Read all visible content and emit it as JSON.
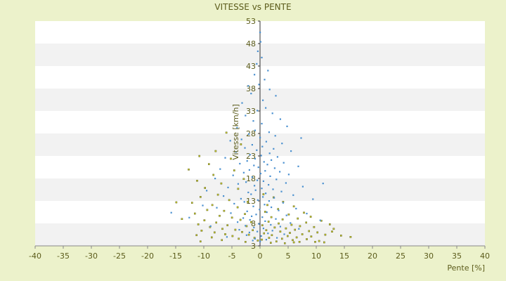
{
  "chart_data": {
    "type": "scatter",
    "title": "VITESSE vs PENTE",
    "xlabel": "Pente [%]",
    "ylabel": "Vitesse [km/h]",
    "xlim": [
      -40,
      40
    ],
    "ylim": [
      3,
      53
    ],
    "x_ticks": [
      -40,
      -35,
      -30,
      -25,
      -20,
      -15,
      -10,
      -5,
      0,
      5,
      10,
      15,
      20,
      25,
      30,
      35,
      40
    ],
    "y_tick_labels": [
      "53",
      "48",
      "43",
      "38",
      "33",
      "28",
      "23",
      "18",
      "13",
      "8",
      "3"
    ],
    "y_ticks": [
      53,
      48,
      43,
      38,
      33,
      28,
      23,
      18,
      13,
      8,
      3
    ],
    "grid": "alternating horizontal bands",
    "legend": "none",
    "colors": {
      "background": "#ECF2CB",
      "band_light": "#FFFFFF",
      "band_dark": "#F2F2F2",
      "text": "#5B5B1A",
      "series_blue": "#4A90D0",
      "series_olive": "#C8CC2C"
    },
    "series": [
      {
        "color": "#4A90D0",
        "points": [
          [
            0.0,
            50.5
          ],
          [
            0.1,
            48.4
          ],
          [
            -0.4,
            46.3
          ],
          [
            0.3,
            44.9
          ],
          [
            -0.6,
            43.5
          ],
          [
            1.4,
            42.0
          ],
          [
            -1.0,
            41.1
          ],
          [
            0.8,
            40.0
          ],
          [
            -2.1,
            38.6
          ],
          [
            -0.2,
            38.9
          ],
          [
            1.7,
            37.8
          ],
          [
            2.8,
            36.4
          ],
          [
            -1.6,
            36.9
          ],
          [
            0.5,
            35.4
          ],
          [
            -3.2,
            34.8
          ],
          [
            1.0,
            33.7
          ],
          [
            -0.5,
            33.1
          ],
          [
            2.2,
            32.5
          ],
          [
            -2.6,
            32.0
          ],
          [
            3.6,
            31.2
          ],
          [
            -1.2,
            30.8
          ],
          [
            0.3,
            30.2
          ],
          [
            4.8,
            29.6
          ],
          [
            -4.1,
            29.3
          ],
          [
            -0.9,
            28.7
          ],
          [
            1.6,
            28.3
          ],
          [
            -2.0,
            27.9
          ],
          [
            2.7,
            27.5
          ],
          [
            0.0,
            27.1
          ],
          [
            -3.3,
            26.7
          ],
          [
            7.3,
            27.0
          ],
          [
            -5.3,
            26.4
          ],
          [
            1.1,
            26.2
          ],
          [
            3.9,
            25.8
          ],
          [
            -1.4,
            25.5
          ],
          [
            0.4,
            25.1
          ],
          [
            -2.7,
            24.8
          ],
          [
            2.4,
            24.6
          ],
          [
            -0.6,
            24.3
          ],
          [
            5.5,
            24.1
          ],
          [
            -4.3,
            23.9
          ],
          [
            1.7,
            23.6
          ],
          [
            -1.8,
            23.3
          ],
          [
            0.2,
            23.1
          ],
          [
            3.1,
            22.8
          ],
          [
            -6.2,
            22.6
          ],
          [
            -0.9,
            22.4
          ],
          [
            2.0,
            22.1
          ],
          [
            -2.3,
            21.9
          ],
          [
            0.7,
            21.7
          ],
          [
            4.2,
            21.5
          ],
          [
            -3.6,
            21.3
          ],
          [
            1.3,
            21.1
          ],
          [
            -1.1,
            20.9
          ],
          [
            6.8,
            20.7
          ],
          [
            -0.3,
            20.5
          ],
          [
            2.6,
            20.3
          ],
          [
            -7.1,
            20.1
          ],
          [
            -1.9,
            19.9
          ],
          [
            0.9,
            19.7
          ],
          [
            3.5,
            19.5
          ],
          [
            -2.9,
            19.3
          ],
          [
            0.1,
            19.1
          ],
          [
            5.1,
            18.9
          ],
          [
            -4.8,
            18.7
          ],
          [
            1.8,
            18.5
          ],
          [
            -1.4,
            18.3
          ],
          [
            -8.0,
            18.0
          ],
          [
            2.9,
            17.8
          ],
          [
            -0.5,
            17.6
          ],
          [
            0.6,
            17.4
          ],
          [
            -2.5,
            17.2
          ],
          [
            4.6,
            17.0
          ],
          [
            -3.9,
            16.8
          ],
          [
            1.5,
            16.6
          ],
          [
            -1.0,
            16.4
          ],
          [
            11.2,
            16.9
          ],
          [
            7.6,
            16.2
          ],
          [
            -5.7,
            16.0
          ],
          [
            0.3,
            15.8
          ],
          [
            2.3,
            15.6
          ],
          [
            -0.8,
            15.4
          ],
          [
            -9.5,
            15.3
          ],
          [
            3.8,
            15.1
          ],
          [
            -2.1,
            14.9
          ],
          [
            1.0,
            14.7
          ],
          [
            -1.6,
            14.5
          ],
          [
            5.9,
            14.3
          ],
          [
            -6.5,
            14.1
          ],
          [
            0.5,
            13.9
          ],
          [
            2.5,
            13.7
          ],
          [
            -3.4,
            13.5
          ],
          [
            9.4,
            13.4
          ],
          [
            -0.4,
            13.2
          ],
          [
            1.6,
            13.0
          ],
          [
            -2.8,
            12.8
          ],
          [
            4.1,
            12.6
          ],
          [
            -4.6,
            12.4
          ],
          [
            0.8,
            12.2
          ],
          [
            -10.2,
            12.0
          ],
          [
            -1.2,
            11.8
          ],
          [
            2.0,
            11.6
          ],
          [
            -7.7,
            11.5
          ],
          [
            6.4,
            11.3
          ],
          [
            -0.1,
            11.1
          ],
          [
            3.3,
            10.9
          ],
          [
            -2.3,
            10.7
          ],
          [
            1.2,
            10.5
          ],
          [
            -5.2,
            10.3
          ],
          [
            -15.8,
            10.4
          ],
          [
            8.3,
            10.2
          ],
          [
            -0.7,
            10.0
          ],
          [
            4.7,
            9.8
          ],
          [
            -1.5,
            9.6
          ],
          [
            0.4,
            9.4
          ],
          [
            -3.0,
            9.2
          ],
          [
            2.8,
            9.0
          ],
          [
            -12.6,
            9.3
          ],
          [
            -1.8,
            8.8
          ],
          [
            10.7,
            8.7
          ],
          [
            0.9,
            8.5
          ],
          [
            -4.0,
            8.3
          ],
          [
            5.4,
            8.1
          ],
          [
            -0.2,
            7.9
          ],
          [
            1.9,
            7.7
          ],
          [
            -2.6,
            7.5
          ],
          [
            -8.8,
            7.4
          ],
          [
            3.6,
            7.3
          ],
          [
            -1.1,
            7.1
          ],
          [
            0.6,
            6.9
          ],
          [
            6.9,
            6.8
          ],
          [
            -3.7,
            6.6
          ],
          [
            2.2,
            6.4
          ],
          [
            -0.5,
            6.2
          ],
          [
            -1.9,
            6.0
          ],
          [
            1.4,
            5.8
          ],
          [
            4.3,
            5.6
          ],
          [
            -2.4,
            5.4
          ],
          [
            0.2,
            5.2
          ],
          [
            -5.9,
            5.0
          ],
          [
            3.0,
            4.8
          ],
          [
            -0.9,
            4.6
          ],
          [
            1.1,
            4.4
          ],
          [
            -1.3,
            4.2
          ],
          [
            0.0,
            4.0
          ]
        ]
      },
      {
        "color": "#C8CC2C",
        "points": [
          [
            -6.0,
            28.2
          ],
          [
            -3.4,
            25.6
          ],
          [
            -7.9,
            24.1
          ],
          [
            -10.8,
            23.0
          ],
          [
            -5.2,
            22.4
          ],
          [
            -9.1,
            21.2
          ],
          [
            -12.7,
            20.0
          ],
          [
            -4.6,
            19.8
          ],
          [
            -8.3,
            18.8
          ],
          [
            -11.2,
            17.5
          ],
          [
            -2.9,
            17.9
          ],
          [
            -6.9,
            16.9
          ],
          [
            -9.8,
            15.9
          ],
          [
            -3.9,
            15.7
          ],
          [
            -14.9,
            12.7
          ],
          [
            -7.5,
            14.4
          ],
          [
            -10.6,
            13.9
          ],
          [
            -5.5,
            13.2
          ],
          [
            -12.1,
            12.6
          ],
          [
            -2.2,
            12.8
          ],
          [
            -8.5,
            12.1
          ],
          [
            -4.0,
            11.6
          ],
          [
            -9.4,
            11.0
          ],
          [
            -6.4,
            10.8
          ],
          [
            -11.6,
            10.2
          ],
          [
            -2.7,
            10.1
          ],
          [
            -7.2,
            9.7
          ],
          [
            -13.9,
            9.0
          ],
          [
            -5.0,
            9.3
          ],
          [
            -9.9,
            8.7
          ],
          [
            -3.5,
            8.8
          ],
          [
            -7.8,
            8.2
          ],
          [
            -1.6,
            8.3
          ],
          [
            -11.0,
            7.8
          ],
          [
            -5.8,
            7.6
          ],
          [
            -8.9,
            7.2
          ],
          [
            -2.4,
            7.4
          ],
          [
            -6.7,
            6.8
          ],
          [
            -10.4,
            6.4
          ],
          [
            -4.4,
            6.6
          ],
          [
            -1.3,
            6.5
          ],
          [
            -8.1,
            6.0
          ],
          [
            -3.2,
            6.1
          ],
          [
            -6.2,
            5.6
          ],
          [
            -11.3,
            5.4
          ],
          [
            -2.0,
            5.5
          ],
          [
            -4.9,
            5.2
          ],
          [
            -8.6,
            4.9
          ],
          [
            -1.0,
            4.8
          ],
          [
            -3.8,
            4.6
          ],
          [
            -6.8,
            4.3
          ],
          [
            -10.6,
            4.0
          ],
          [
            -0.4,
            4.2
          ],
          [
            -2.6,
            3.9
          ],
          [
            0.6,
            14.5
          ],
          [
            2.4,
            13.8
          ],
          [
            4.1,
            12.8
          ],
          [
            1.3,
            12.1
          ],
          [
            6.0,
            11.8
          ],
          [
            3.2,
            11.2
          ],
          [
            7.8,
            10.4
          ],
          [
            0.9,
            10.6
          ],
          [
            5.1,
            10.0
          ],
          [
            9.0,
            9.5
          ],
          [
            2.0,
            9.4
          ],
          [
            6.7,
            9.1
          ],
          [
            4.0,
            8.9
          ],
          [
            10.9,
            8.6
          ],
          [
            1.5,
            8.4
          ],
          [
            8.2,
            8.2
          ],
          [
            3.3,
            8.0
          ],
          [
            12.4,
            7.8
          ],
          [
            5.6,
            7.7
          ],
          [
            0.4,
            7.6
          ],
          [
            7.1,
            7.4
          ],
          [
            9.6,
            7.2
          ],
          [
            2.6,
            7.1
          ],
          [
            4.6,
            6.9
          ],
          [
            13.1,
            6.8
          ],
          [
            6.2,
            6.6
          ],
          [
            1.1,
            6.5
          ],
          [
            8.7,
            6.3
          ],
          [
            3.6,
            6.2
          ],
          [
            10.2,
            6.0
          ],
          [
            5.3,
            5.9
          ],
          [
            0.7,
            5.8
          ],
          [
            7.5,
            5.6
          ],
          [
            11.6,
            5.5
          ],
          [
            2.1,
            5.4
          ],
          [
            4.9,
            5.2
          ],
          [
            9.1,
            5.1
          ],
          [
            14.4,
            5.3
          ],
          [
            6.5,
            4.9
          ],
          [
            1.6,
            4.8
          ],
          [
            3.9,
            4.6
          ],
          [
            8.3,
            4.5
          ],
          [
            0.3,
            4.4
          ],
          [
            5.8,
            4.3
          ],
          [
            10.5,
            4.1
          ],
          [
            2.9,
            4.0
          ],
          [
            7.0,
            3.9
          ],
          [
            11.4,
            3.8
          ],
          [
            16.1,
            5.0
          ],
          [
            1.9,
            3.7
          ],
          [
            4.4,
            3.6
          ],
          [
            12.8,
            6.2
          ],
          [
            9.8,
            3.9
          ],
          [
            6.0,
            3.8
          ]
        ]
      }
    ]
  }
}
